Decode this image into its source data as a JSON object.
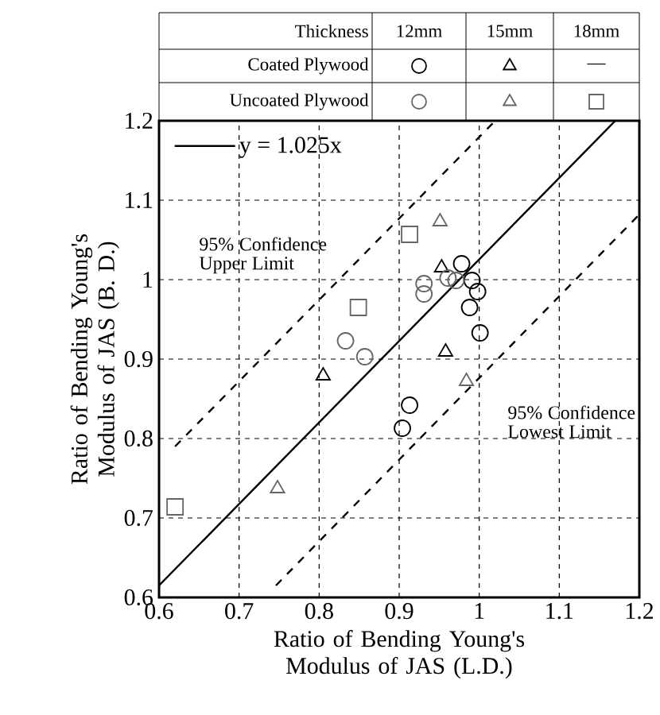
{
  "chart_data": {
    "type": "scatter",
    "xlabel": "Ratio of Bending Young's Modulus of JAS (L.D.)",
    "ylabel": "Ratio of Bending Young's Modulus of JAS (B. D.)",
    "xlim": [
      0.6,
      1.2
    ],
    "ylim": [
      0.6,
      1.2
    ],
    "xticks": [
      0.6,
      0.7,
      0.8,
      0.9,
      1,
      1.1,
      1.2
    ],
    "yticks": [
      0.6,
      0.7,
      0.8,
      0.9,
      1,
      1.1,
      1.2
    ],
    "grid": true,
    "legend": "top left",
    "series": [
      {
        "color": "#000000",
        "marker": "circle",
        "x": [
          0.978,
          0.991,
          0.998,
          0.988,
          1.001,
          0.913,
          0.904
        ],
        "values": [
          1.02,
          0.999,
          0.985,
          0.965,
          0.933,
          0.842,
          0.813
        ]
      },
      {
        "color": "#000000",
        "marker": "triangle",
        "x": [
          0.805,
          0.953,
          0.958
        ],
        "values": [
          0.879,
          1.015,
          0.909
        ]
      },
      {
        "color": "#666666",
        "marker": "circle",
        "x": [
          0.833,
          0.857,
          0.931,
          0.931,
          0.961,
          0.971
        ],
        "values": [
          0.923,
          0.903,
          0.995,
          0.982,
          1.002,
          0.999
        ]
      },
      {
        "color": "#666666",
        "marker": "triangle",
        "x": [
          0.748,
          0.951,
          0.984
        ],
        "values": [
          0.737,
          1.073,
          0.872
        ]
      },
      {
        "color": "#666666",
        "marker": "square",
        "x": [
          0.62,
          0.849,
          0.913
        ],
        "values": [
          0.714,
          0.965,
          1.057
        ]
      },
      {
        "type": "line",
        "name": "y = 1.025x",
        "color": "#000000",
        "line_style": "solid",
        "marker": "none",
        "x": [
          0.6,
          1.17
        ],
        "values": [
          0.615,
          1.2
        ]
      },
      {
        "type": "line",
        "color": "#000000",
        "line_style": "dashed",
        "marker": "none",
        "x": [
          0.62,
          1.02
        ],
        "values": [
          0.79,
          1.2
        ]
      },
      {
        "type": "line",
        "color": "#000000",
        "line_style": "dashed",
        "marker": "none",
        "x": [
          0.746,
          1.2
        ],
        "values": [
          0.615,
          1.082
        ]
      }
    ],
    "annotations": [
      "Thickness",
      "12mm",
      "15mm",
      "18mm",
      "Coated Plywood",
      "Uncoated Plywood",
      "—",
      "95% Confidence Upper Limit",
      "95% Confidence Lowest Limit"
    ]
  }
}
